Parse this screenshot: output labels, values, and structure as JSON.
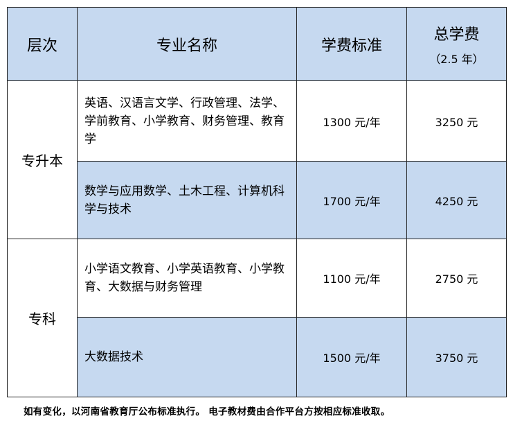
{
  "header": {
    "level": "层次",
    "major": "专业名称",
    "fee": "学费标准",
    "total": "总学费",
    "total_sub": "（2.5 年）"
  },
  "groups": [
    {
      "level": "专升本",
      "rows": [
        {
          "major": "英语、汉语言文学、行政管理、法学、学前教育、小学教育、财务管理、教育学",
          "fee": "1300 元/年",
          "total": "3250 元"
        },
        {
          "major": "数学与应用数学、土木工程、计算机科学与技术",
          "fee": "1700 元/年",
          "total": "4250 元"
        }
      ]
    },
    {
      "level": "专科",
      "rows": [
        {
          "major": "小学语文教育、小学英语教育、小学教育、大数据与财务管理",
          "fee": "1100 元/年",
          "total": "2750 元"
        },
        {
          "major": "大数据技术",
          "fee": "1500 元/年",
          "total": "3750 元"
        }
      ]
    }
  ],
  "footnote": "如有变化，以河南省教育厅公布标准执行。 电子教材费由合作平台方按相应标准收取。",
  "colors": {
    "header_bg": "#c6d9f0",
    "row_alt_bg": "#c6d9f0"
  }
}
